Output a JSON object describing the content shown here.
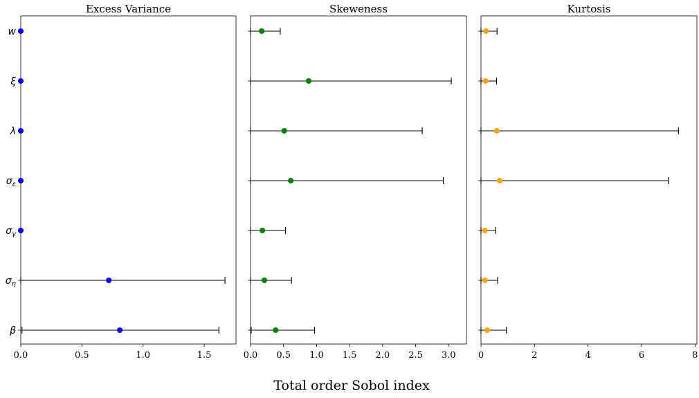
{
  "figure": {
    "xlabel": "Total order Sobol index"
  },
  "chart_data": [
    {
      "type": "scatter",
      "title": "Excess Variance",
      "color": "#0000ff",
      "xlim": [
        0,
        1.76
      ],
      "xticks": [
        0.0,
        0.5,
        1.0,
        1.5
      ],
      "xtick_labels": [
        "0.0",
        "0.5",
        "1.0",
        "1.5"
      ],
      "categories": [
        "w",
        "ξ",
        "λ",
        "σε",
        "σγ",
        "ση",
        "β"
      ],
      "points": [
        {
          "param": "w",
          "value": 0.0,
          "ci_low": 0.0,
          "ci_high": 0.0
        },
        {
          "param": "ξ",
          "value": 0.0,
          "ci_low": 0.0,
          "ci_high": 0.0
        },
        {
          "param": "λ",
          "value": 0.0,
          "ci_low": 0.0,
          "ci_high": 0.0
        },
        {
          "param": "σε",
          "value": 0.0,
          "ci_low": 0.0,
          "ci_high": 0.0
        },
        {
          "param": "σγ",
          "value": 0.0,
          "ci_low": 0.0,
          "ci_high": 0.0
        },
        {
          "param": "ση",
          "value": 0.72,
          "ci_low": 0.0,
          "ci_high": 1.67
        },
        {
          "param": "β",
          "value": 0.81,
          "ci_low": 0.01,
          "ci_high": 1.62
        }
      ]
    },
    {
      "type": "scatter",
      "title": "Skeweness",
      "color": "#008000",
      "xlim": [
        0,
        3.27
      ],
      "xticks": [
        0.0,
        0.5,
        1.0,
        1.5,
        2.0,
        2.5,
        3.0
      ],
      "xtick_labels": [
        "0.0",
        "0.5",
        "1.0",
        "1.5",
        "2.0",
        "2.5",
        "3.0"
      ],
      "categories": [
        "w",
        "ξ",
        "λ",
        "σε",
        "σγ",
        "ση",
        "β"
      ],
      "points": [
        {
          "param": "w",
          "value": 0.17,
          "ci_low": 0.0,
          "ci_high": 0.45
        },
        {
          "param": "ξ",
          "value": 0.88,
          "ci_low": 0.0,
          "ci_high": 3.04
        },
        {
          "param": "λ",
          "value": 0.51,
          "ci_low": 0.0,
          "ci_high": 2.6
        },
        {
          "param": "σε",
          "value": 0.61,
          "ci_low": 0.0,
          "ci_high": 2.92
        },
        {
          "param": "σγ",
          "value": 0.18,
          "ci_low": 0.0,
          "ci_high": 0.53
        },
        {
          "param": "ση",
          "value": 0.21,
          "ci_low": 0.0,
          "ci_high": 0.62
        },
        {
          "param": "β",
          "value": 0.38,
          "ci_low": 0.01,
          "ci_high": 0.97
        }
      ]
    },
    {
      "type": "scatter",
      "title": "Kurtosis",
      "color": "#ffa500",
      "xlim": [
        0,
        8.07
      ],
      "xticks": [
        0,
        2,
        4,
        6,
        8
      ],
      "xtick_labels": [
        "0",
        "2",
        "4",
        "6",
        "8"
      ],
      "categories": [
        "w",
        "ξ",
        "λ",
        "σε",
        "σγ",
        "ση",
        "β"
      ],
      "points": [
        {
          "param": "w",
          "value": 0.19,
          "ci_low": 0.0,
          "ci_high": 0.6
        },
        {
          "param": "ξ",
          "value": 0.17,
          "ci_low": 0.0,
          "ci_high": 0.58
        },
        {
          "param": "λ",
          "value": 0.59,
          "ci_low": 0.0,
          "ci_high": 7.38
        },
        {
          "param": "σε",
          "value": 0.7,
          "ci_low": 0.0,
          "ci_high": 7.0
        },
        {
          "param": "σγ",
          "value": 0.15,
          "ci_low": 0.0,
          "ci_high": 0.54
        },
        {
          "param": "ση",
          "value": 0.15,
          "ci_low": 0.0,
          "ci_high": 0.62
        },
        {
          "param": "β",
          "value": 0.23,
          "ci_low": 0.0,
          "ci_high": 0.95
        }
      ]
    }
  ],
  "y_labels": [
    {
      "base": "w",
      "sub": ""
    },
    {
      "base": "ξ",
      "sub": ""
    },
    {
      "base": "λ",
      "sub": ""
    },
    {
      "base": "σ",
      "sub": "ε"
    },
    {
      "base": "σ",
      "sub": "γ"
    },
    {
      "base": "σ",
      "sub": "η"
    },
    {
      "base": "β",
      "sub": ""
    }
  ]
}
